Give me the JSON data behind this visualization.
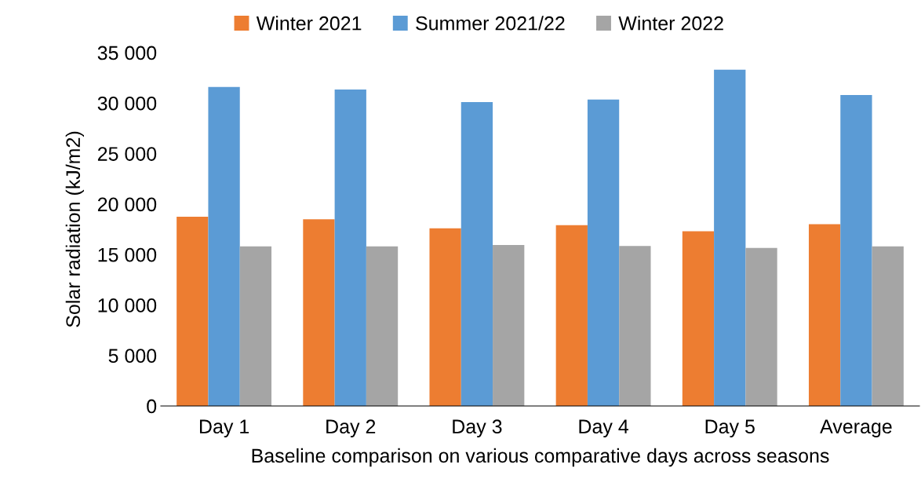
{
  "chart_data": {
    "type": "bar",
    "xlabel": "Baseline comparison on various comparative days across seasons",
    "ylabel": "Solar radiation (kJ/m2)",
    "categories": [
      "Day 1",
      "Day 2",
      "Day 3",
      "Day 4",
      "Day 5",
      "Average"
    ],
    "series": [
      {
        "name": "Winter 2021",
        "color": "#ed7d31",
        "values": [
          18750,
          18500,
          17600,
          17900,
          17300,
          18000
        ]
      },
      {
        "name": "Summer 2021/22",
        "color": "#5b9bd5",
        "values": [
          31600,
          31350,
          30100,
          30350,
          33300,
          30800
        ]
      },
      {
        "name": "Winter 2022",
        "color": "#a5a5a5",
        "values": [
          15800,
          15800,
          15950,
          15850,
          15650,
          15800
        ]
      }
    ],
    "ylim": [
      0,
      35000
    ],
    "yticks": [
      {
        "value": 0,
        "label": "0"
      },
      {
        "value": 5000,
        "label": "5 000"
      },
      {
        "value": 10000,
        "label": "10 000"
      },
      {
        "value": 15000,
        "label": "15 000"
      },
      {
        "value": 20000,
        "label": "20 000"
      },
      {
        "value": 25000,
        "label": "25 000"
      },
      {
        "value": 30000,
        "label": "30 000"
      },
      {
        "value": 35000,
        "label": "35 000"
      }
    ],
    "grid": false,
    "legend": "top"
  }
}
